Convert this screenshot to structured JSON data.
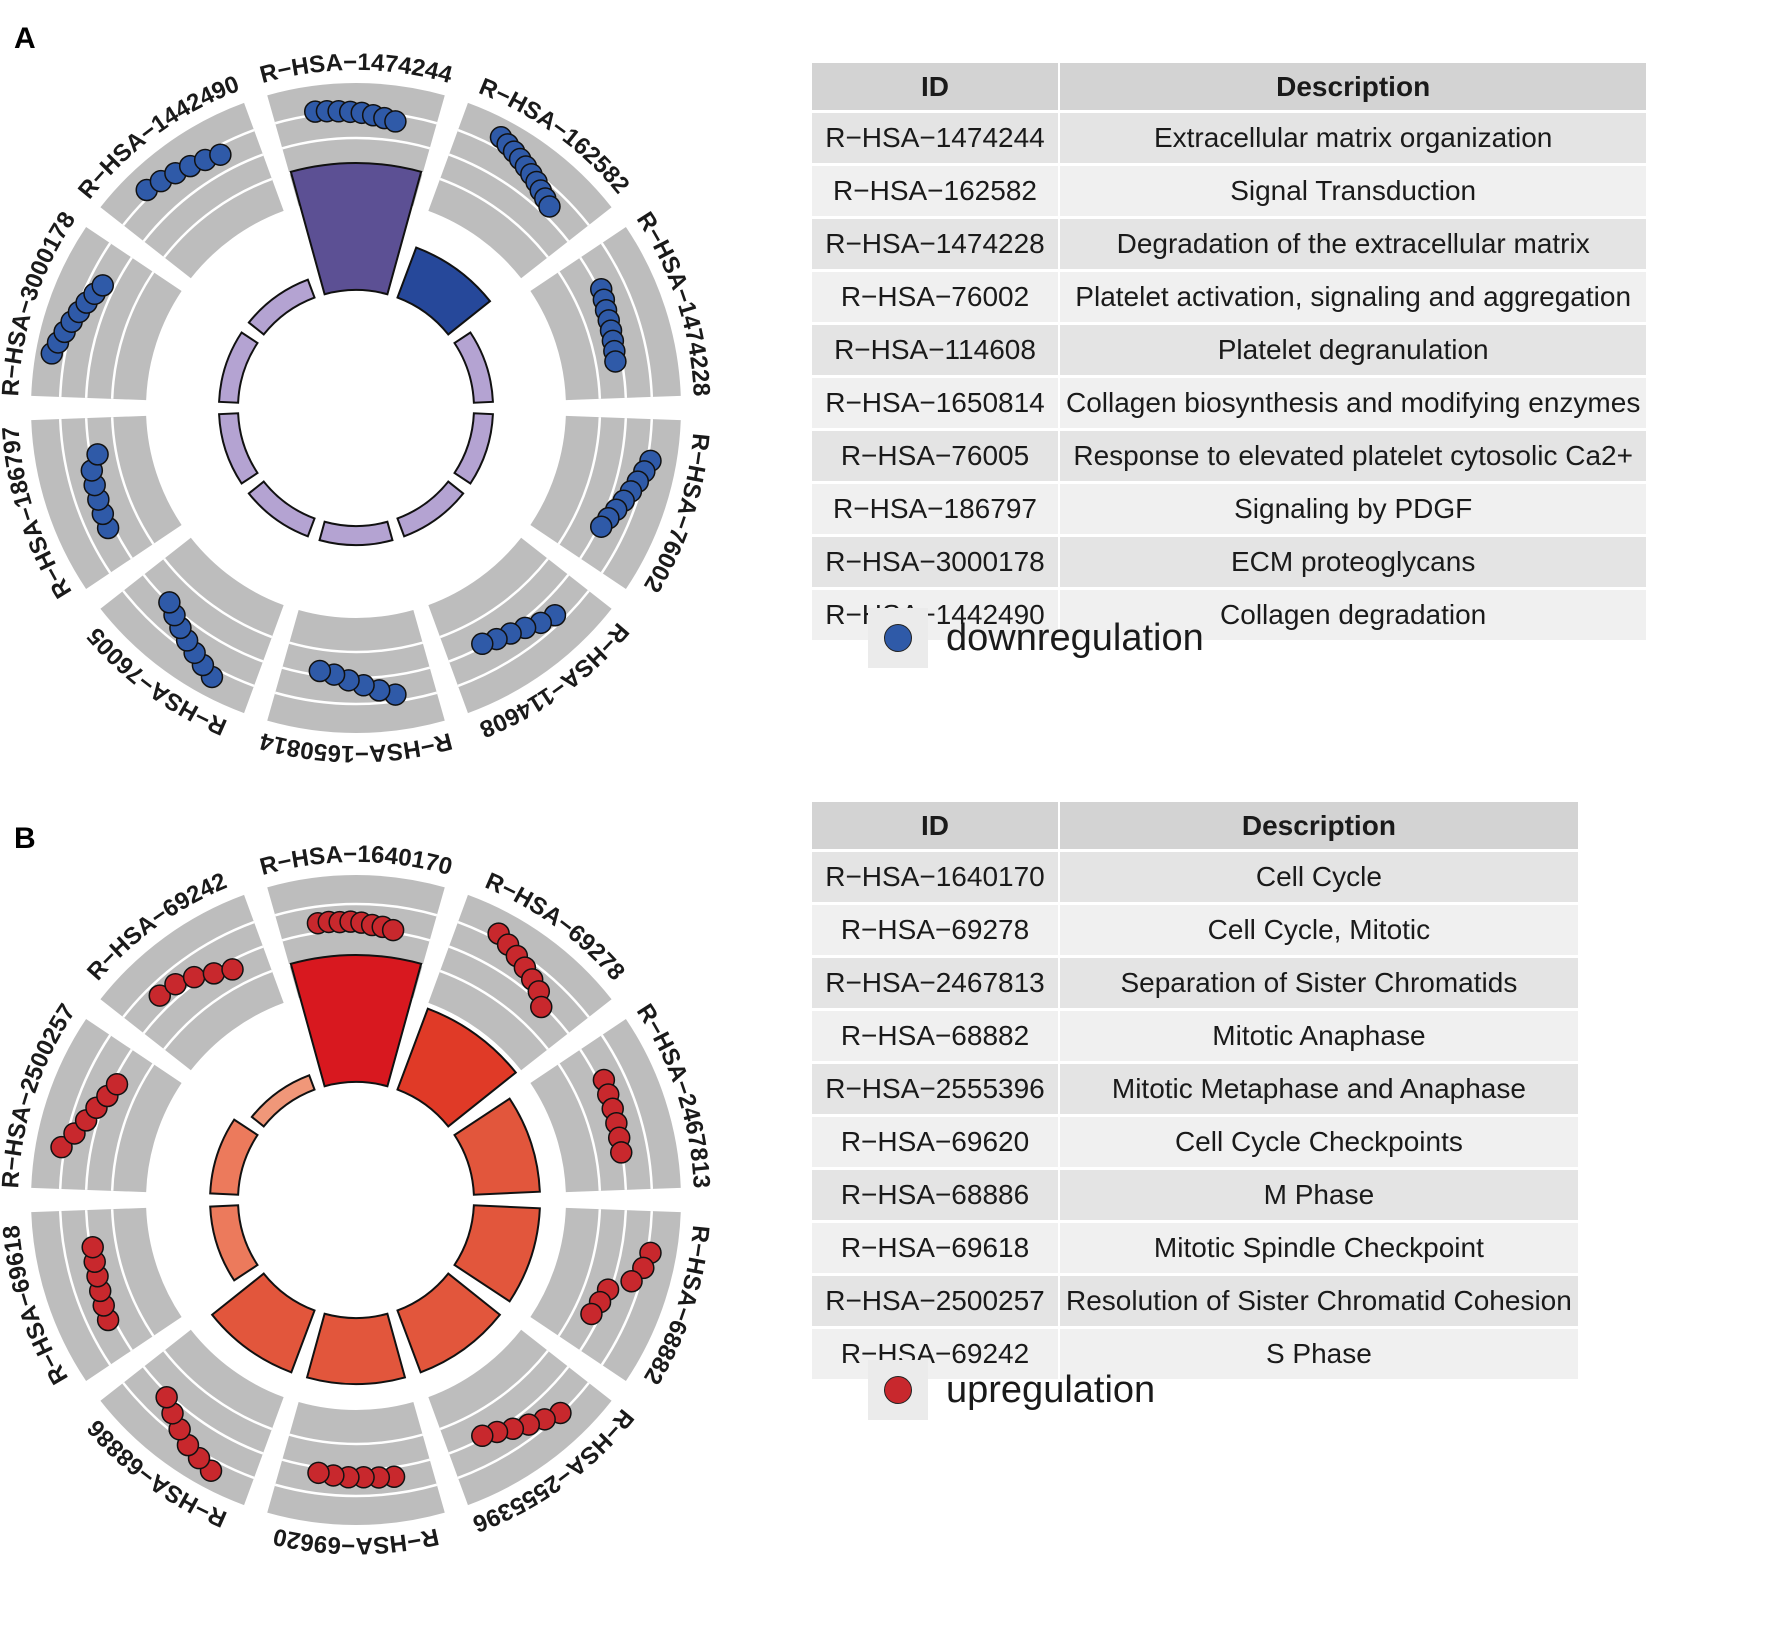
{
  "panels": [
    {
      "letter": "A",
      "table": {
        "headers": [
          "ID",
          "Description"
        ],
        "rows": [
          [
            "R−HSA−1474244",
            "Extracellular matrix organization"
          ],
          [
            "R−HSA−162582",
            "Signal Transduction"
          ],
          [
            "R−HSA−1474228",
            "Degradation of the extracellular matrix"
          ],
          [
            "R−HSA−76002",
            "Platelet activation, signaling and aggregation"
          ],
          [
            "R−HSA−114608",
            "Platelet degranulation"
          ],
          [
            "R−HSA−1650814",
            "Collagen biosynthesis and modifying enzymes"
          ],
          [
            "R−HSA−76005",
            "Response to elevated platelet cytosolic Ca2+"
          ],
          [
            "R−HSA−186797",
            "Signaling by PDGF"
          ],
          [
            "R−HSA−3000178",
            "ECM proteoglycans"
          ],
          [
            "R−HSA−1442490",
            "Collagen degradation"
          ]
        ]
      },
      "legend": {
        "label": "downregulation",
        "color": "#2f5aa8"
      }
    },
    {
      "letter": "B",
      "table": {
        "headers": [
          "ID",
          "Description"
        ],
        "rows": [
          [
            "R−HSA−1640170",
            "Cell Cycle"
          ],
          [
            "R−HSA−69278",
            "Cell Cycle, Mitotic"
          ],
          [
            "R−HSA−2467813",
            "Separation of Sister Chromatids"
          ],
          [
            "R−HSA−68882",
            "Mitotic Anaphase"
          ],
          [
            "R−HSA−2555396",
            "Mitotic Metaphase and Anaphase"
          ],
          [
            "R−HSA−69620",
            "Cell Cycle Checkpoints"
          ],
          [
            "R−HSA−68886",
            "M Phase"
          ],
          [
            "R−HSA−69618",
            "Mitotic Spindle Checkpoint"
          ],
          [
            "R−HSA−2500257",
            "Resolution of Sister Chromatid Cohesion"
          ],
          [
            "R−HSA−69242",
            "S Phase"
          ]
        ]
      },
      "legend": {
        "label": "upregulation",
        "color": "#c8282d"
      }
    }
  ],
  "chart_data": [
    {
      "type": "circular_enrichment",
      "panel": "A",
      "regulation": "downregulation",
      "point_color": "#2f5aa8",
      "segments": [
        {
          "id": "R−HSA−1474244",
          "bar": 1.0,
          "bar_color": "#5c5094",
          "points": [
            0.82,
            0.81,
            0.8,
            0.79,
            0.78,
            0.76,
            0.74,
            0.72
          ]
        },
        {
          "id": "R−HSA−162582",
          "bar": 0.42,
          "bar_color": "#26489a",
          "points": [
            0.9,
            0.87,
            0.84,
            0.81,
            0.78,
            0.75,
            0.72,
            0.68,
            0.65,
            0.62
          ]
        },
        {
          "id": "R−HSA−1474228",
          "bar": 0.15,
          "bar_color": "#b4a3d2",
          "points": [
            0.55,
            0.53,
            0.51,
            0.5,
            0.49,
            0.48,
            0.47,
            0.46
          ]
        },
        {
          "id": "R−HSA−76002",
          "bar": 0.15,
          "bar_color": "#b4a3d2",
          "points": [
            0.82,
            0.78,
            0.74,
            0.7,
            0.66,
            0.62,
            0.58,
            0.55
          ]
        },
        {
          "id": "R−HSA−114608",
          "bar": 0.15,
          "bar_color": "#b4a3d2",
          "points": [
            0.7,
            0.66,
            0.6,
            0.56,
            0.53,
            0.5
          ]
        },
        {
          "id": "R−HSA−1650814",
          "bar": 0.15,
          "bar_color": "#b4a3d2",
          "points": [
            0.72,
            0.66,
            0.6,
            0.55,
            0.5,
            0.48
          ]
        },
        {
          "id": "R−HSA−76005",
          "bar": 0.15,
          "bar_color": "#b4a3d2",
          "points": [
            0.88,
            0.82,
            0.76,
            0.7,
            0.64,
            0.58,
            0.52
          ]
        },
        {
          "id": "R−HSA−186797",
          "bar": 0.15,
          "bar_color": "#b4a3d2",
          "points": [
            0.58,
            0.57,
            0.56,
            0.55,
            0.54,
            0.45
          ]
        },
        {
          "id": "R−HSA−3000178",
          "bar": 0.15,
          "bar_color": "#b4a3d2",
          "points": [
            0.92,
            0.88,
            0.84,
            0.8,
            0.76,
            0.72,
            0.68,
            0.64
          ]
        },
        {
          "id": "R−HSA−1442490",
          "bar": 0.15,
          "bar_color": "#b4a3d2",
          "points": [
            0.85,
            0.82,
            0.79,
            0.76,
            0.73,
            0.7
          ]
        }
      ]
    },
    {
      "type": "circular_enrichment",
      "panel": "B",
      "regulation": "upregulation",
      "point_color": "#c8282d",
      "segments": [
        {
          "id": "R−HSA−1640170",
          "bar": 1.0,
          "bar_color": "#d8181f",
          "points": [
            0.62,
            0.62,
            0.61,
            0.61,
            0.6,
            0.58,
            0.57,
            0.55
          ]
        },
        {
          "id": "R−HSA−69278",
          "bar": 0.68,
          "bar_color": "#e03a27",
          "points": [
            0.85,
            0.8,
            0.75,
            0.7,
            0.65,
            0.6,
            0.5
          ]
        },
        {
          "id": "R−HSA−2467813",
          "bar": 0.52,
          "bar_color": "#e2563c",
          "points": [
            0.58,
            0.56,
            0.55,
            0.54,
            0.53,
            0.52
          ]
        },
        {
          "id": "R−HSA−68882",
          "bar": 0.52,
          "bar_color": "#e2563c",
          "points": [
            0.82,
            0.78,
            0.7,
            0.5,
            0.47,
            0.44
          ]
        },
        {
          "id": "R−HSA−2555396",
          "bar": 0.52,
          "bar_color": "#e2563c",
          "points": [
            0.78,
            0.72,
            0.66,
            0.6,
            0.54,
            0.5
          ]
        },
        {
          "id": "R−HSA−69620",
          "bar": 0.52,
          "bar_color": "#e2563c",
          "points": [
            0.62,
            0.61,
            0.6,
            0.6,
            0.59,
            0.58
          ]
        },
        {
          "id": "R−HSA−68886",
          "bar": 0.52,
          "bar_color": "#e2563c",
          "points": [
            0.9,
            0.85,
            0.8,
            0.72,
            0.64,
            0.56
          ]
        },
        {
          "id": "R−HSA−69618",
          "bar": 0.22,
          "bar_color": "#ec7a5c",
          "points": [
            0.58,
            0.56,
            0.54,
            0.52,
            0.51,
            0.5
          ]
        },
        {
          "id": "R−HSA−2500257",
          "bar": 0.22,
          "bar_color": "#ec7a5c",
          "points": [
            0.82,
            0.72,
            0.64,
            0.58,
            0.52,
            0.48
          ]
        },
        {
          "id": "R−HSA−69242",
          "bar": 0.12,
          "bar_color": "#f09779",
          "points": [
            0.66,
            0.64,
            0.58,
            0.5,
            0.44
          ]
        }
      ]
    }
  ]
}
